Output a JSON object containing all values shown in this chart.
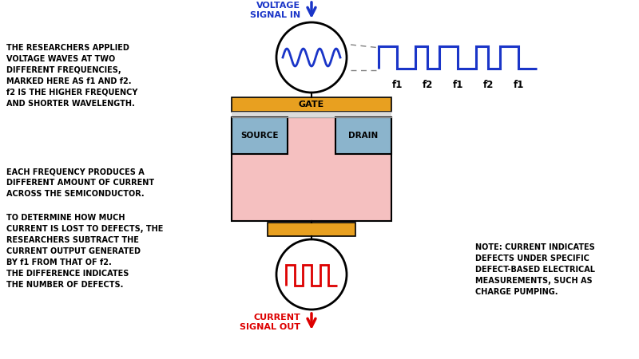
{
  "bg_color": "#ffffff",
  "left_text_1": "THE RESEARCHERS APPLIED\nVOLTAGE WAVES AT TWO\nDIFFERENT FREQUENCIES,\nMARKED HERE AS f1 AND f2.\nf2 IS THE HIGHER FREQUENCY\nAND SHORTER WAVELENGTH.",
  "left_text_2": "EACH FREQUENCY PRODUCES A\nDIFFERENT AMOUNT OF CURRENT\nACROSS THE SEMICONDUCTOR.",
  "left_text_3": "TO DETERMINE HOW MUCH\nCURRENT IS LOST TO DEFECTS, THE\nRESEARCHERS SUBTRACT THE\nCURRENT OUTPUT GENERATED\nBY f1 FROM THAT OF f2.\nTHE DIFFERENCE INDICATES\nTHE NUMBER OF DEFECTS.",
  "right_text": "NOTE: CURRENT INDICATES\nDEFECTS UNDER SPECIFIC\nDEFECT-BASED ELECTRICAL\nMEASUREMENTS, SUCH AS\nCHARGE PUMPING.",
  "voltage_label": "VOLTAGE\nSIGNAL IN",
  "current_label": "CURRENT\nSIGNAL OUT",
  "gate_color": "#E8A020",
  "gate_text": "GATE",
  "source_color": "#8BB4CC",
  "source_text": "SOURCE",
  "drain_color": "#8BB4CC",
  "drain_text": "DRAIN",
  "semiconductor_color": "#F5C0C0",
  "oxide_color": "#DCDCDC",
  "bottom_contact_color": "#E8A020",
  "f_labels": [
    "f1",
    "f2",
    "f1",
    "f2",
    "f1"
  ],
  "blue_color": "#1A35C8",
  "red_color": "#DD0000",
  "black": "#000000"
}
